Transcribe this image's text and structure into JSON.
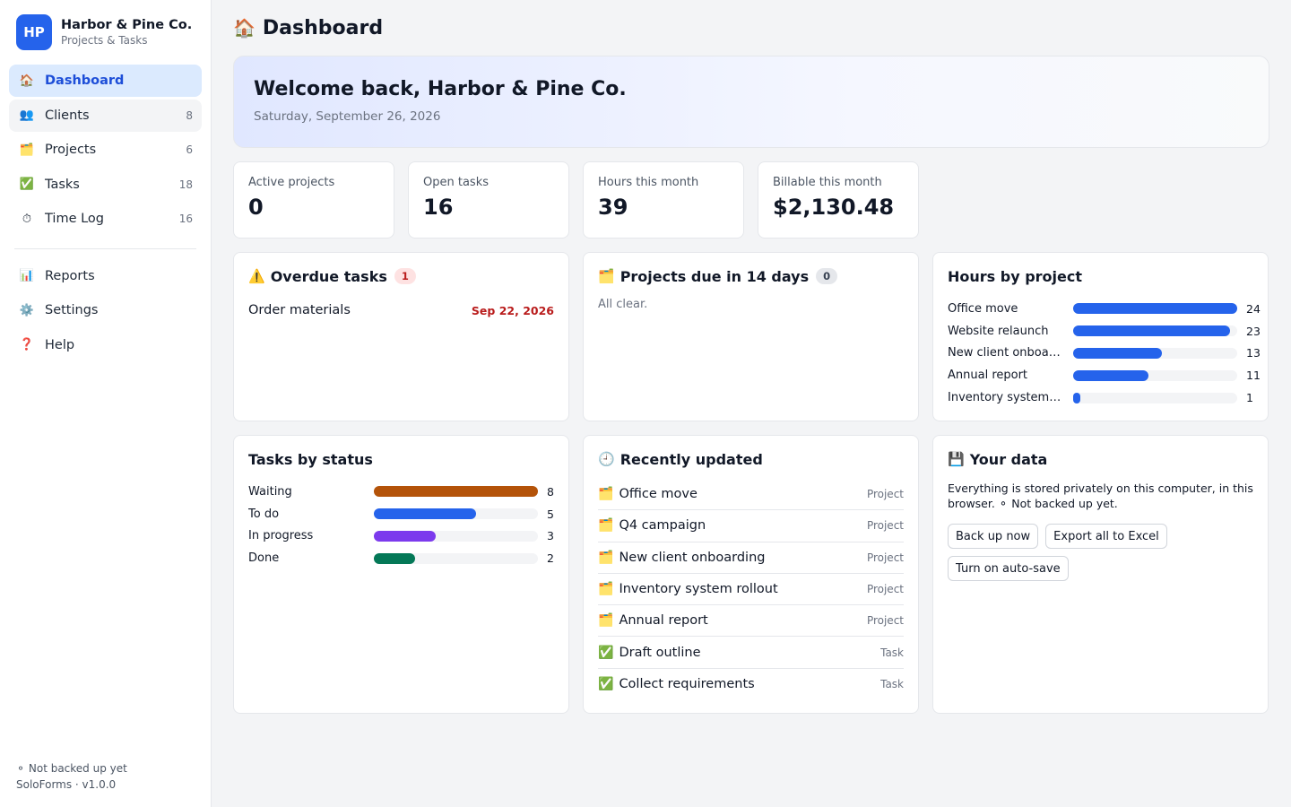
{
  "brand": {
    "initials": "HP",
    "name": "Harbor & Pine Co.",
    "subtitle": "Projects & Tasks"
  },
  "nav": [
    {
      "icon": "🏠",
      "label": "Dashboard",
      "count": ""
    },
    {
      "icon": "👥",
      "label": "Clients",
      "count": "8"
    },
    {
      "icon": "🗂️",
      "label": "Projects",
      "count": "6"
    },
    {
      "icon": "✅",
      "label": "Tasks",
      "count": "18"
    },
    {
      "icon": "⏱",
      "label": "Time Log",
      "count": "16"
    }
  ],
  "nav_secondary": [
    {
      "icon": "📊",
      "label": "Reports"
    },
    {
      "icon": "⚙️",
      "label": "Settings"
    },
    {
      "icon": "❓",
      "label": "Help"
    }
  ],
  "sidebar_footer": {
    "backup_status": "⚬ Not backed up yet",
    "version": "SoloForms · v1.0.0"
  },
  "page": {
    "icon": "🏠",
    "title": "Dashboard"
  },
  "welcome": {
    "heading": "Welcome back, Harbor & Pine Co.",
    "date": "Saturday, September 26, 2026"
  },
  "stats": [
    {
      "label": "Active projects",
      "value": "0"
    },
    {
      "label": "Open tasks",
      "value": "16"
    },
    {
      "label": "Hours this month",
      "value": "39"
    },
    {
      "label": "Billable this month",
      "value": "$2,130.48"
    }
  ],
  "overdue": {
    "icon": "⚠️",
    "title": "Overdue tasks",
    "count": "1",
    "items": [
      {
        "name": "Order materials",
        "date": "Sep 22, 2026"
      }
    ]
  },
  "due_soon": {
    "icon": "🗂️",
    "title": "Projects due in 14 days",
    "count": "0",
    "empty_text": "All clear."
  },
  "hours_by_project": {
    "title": "Hours by project",
    "color": "#2563eb",
    "max": 24,
    "rows": [
      {
        "label": "Office move",
        "value": 24
      },
      {
        "label": "Website relaunch",
        "value": 23
      },
      {
        "label": "New client onboa…",
        "value": 13
      },
      {
        "label": "Annual report",
        "value": 11
      },
      {
        "label": "Inventory system…",
        "value": 1
      }
    ]
  },
  "tasks_by_status": {
    "title": "Tasks by status",
    "max": 8,
    "rows": [
      {
        "label": "Waiting",
        "value": 8,
        "color": "#b45309"
      },
      {
        "label": "To do",
        "value": 5,
        "color": "#2563eb"
      },
      {
        "label": "In progress",
        "value": 3,
        "color": "#7c3aed"
      },
      {
        "label": "Done",
        "value": 2,
        "color": "#047857"
      }
    ]
  },
  "recent": {
    "icon": "🕘",
    "title": "Recently updated",
    "items": [
      {
        "icon": "🗂️",
        "name": "Office move",
        "type": "Project"
      },
      {
        "icon": "🗂️",
        "name": "Q4 campaign",
        "type": "Project"
      },
      {
        "icon": "🗂️",
        "name": "New client onboarding",
        "type": "Project"
      },
      {
        "icon": "🗂️",
        "name": "Inventory system rollout",
        "type": "Project"
      },
      {
        "icon": "🗂️",
        "name": "Annual report",
        "type": "Project"
      },
      {
        "icon": "✅",
        "name": "Draft outline",
        "type": "Task"
      },
      {
        "icon": "✅",
        "name": "Collect requirements",
        "type": "Task"
      }
    ]
  },
  "your_data": {
    "icon": "💾",
    "title": "Your data",
    "text": "Everything is stored privately on this computer, in this browser. ⚬ Not backed up yet.",
    "buttons": {
      "backup": "Back up now",
      "export": "Export all to Excel",
      "autosave": "Turn on auto-save"
    }
  }
}
